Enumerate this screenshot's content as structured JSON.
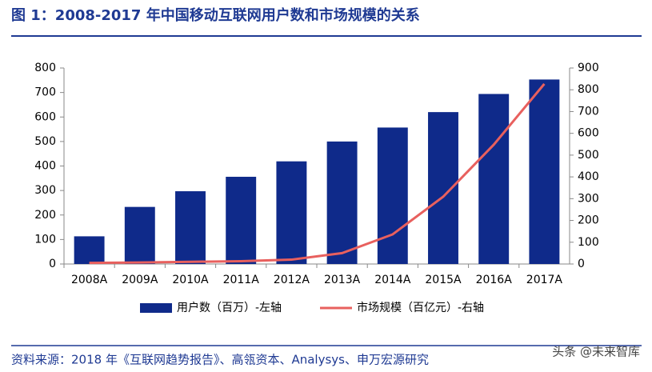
{
  "chart_data": {
    "type": "bar",
    "title": "图 1：2008-2017 年中国移动互联网用户数和市场规模的关系",
    "source": "资料来源：2018 年《互联网趋势报告》、高瓴资本、Analysys、申万宏源研究",
    "watermark": "头条 @未来智库",
    "categories": [
      "2008A",
      "2009A",
      "2010A",
      "2011A",
      "2012A",
      "2013A",
      "2014A",
      "2015A",
      "2016A",
      "2017A"
    ],
    "series": [
      {
        "name": "用户数（百万）-左轴",
        "type": "bar",
        "color": "#0f2a8a",
        "values": [
          113,
          233,
          297,
          356,
          419,
          500,
          557,
          620,
          694,
          753
        ]
      },
      {
        "name": "市场规模（百亿元）-右轴",
        "type": "line",
        "axis": "y2",
        "color": "#e8605e",
        "values": [
          5,
          7,
          10,
          13,
          20,
          50,
          136,
          309,
          548,
          827
        ]
      }
    ],
    "ylim": [
      0,
      800
    ],
    "yticks": [
      0,
      100,
      200,
      300,
      400,
      500,
      600,
      700,
      800
    ],
    "y2lim": [
      0,
      900
    ],
    "y2ticks": [
      0,
      100,
      200,
      300,
      400,
      500,
      600,
      700,
      800,
      900
    ],
    "legend": "bottom"
  }
}
